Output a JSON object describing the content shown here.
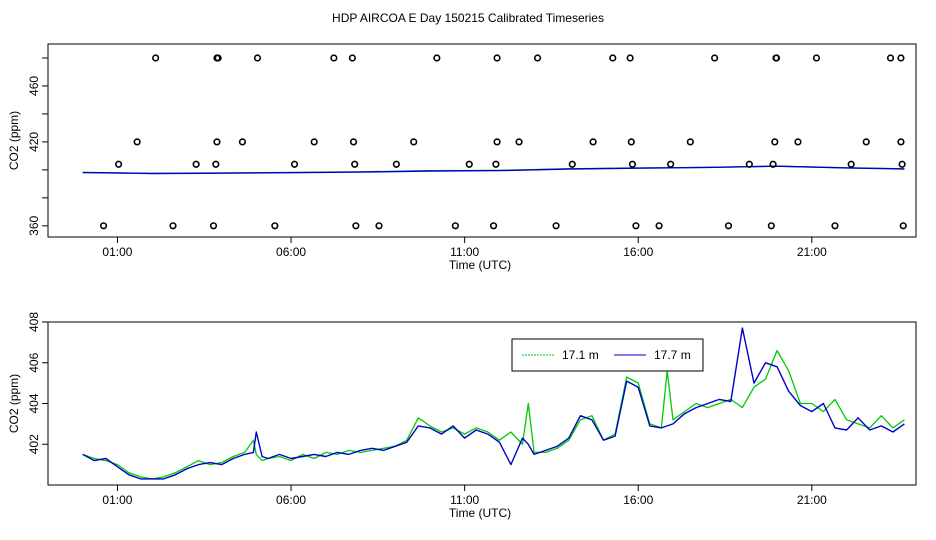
{
  "title": "HDP AIRCOA E  Day 150215  Calibrated Timeseries",
  "colors": {
    "green": "#00cc00",
    "blue": "#0000cc",
    "points": "#000000",
    "axis": "#000000"
  },
  "chart_data": [
    {
      "type": "scatter",
      "xlabel": "Time (UTC)",
      "ylabel": "CO2 (ppm)",
      "xlim": [
        "23:00",
        "24:00"
      ],
      "ylim": [
        352,
        490
      ],
      "x_ticks": [
        "01:00",
        "06:00",
        "11:00",
        "16:00",
        "21:00"
      ],
      "y_ticks": [
        360,
        380,
        400,
        420,
        440,
        460,
        480
      ],
      "y_tick_labels": [
        "360",
        "",
        "",
        "420",
        "",
        "460",
        ""
      ],
      "point_groups": [
        {
          "y": 480,
          "x": [
            "02:06",
            "03:52",
            "03:54",
            "05:02",
            "07:14",
            "07:46",
            "10:12",
            "11:56",
            "13:06",
            "15:16",
            "15:46",
            "18:12",
            "19:58",
            "19:59",
            "21:08",
            "23:16",
            "23:34"
          ]
        },
        {
          "y": 420,
          "x": [
            "01:34",
            "03:52",
            "04:36",
            "06:40",
            "07:48",
            "09:32",
            "11:56",
            "12:34",
            "14:42",
            "15:48",
            "17:30",
            "19:56",
            "20:36",
            "22:34",
            "23:34"
          ]
        },
        {
          "y": 404,
          "x": [
            "01:02",
            "03:16",
            "03:50",
            "06:06",
            "07:50",
            "09:02",
            "11:08",
            "11:54",
            "14:06",
            "15:50",
            "16:56",
            "19:12",
            "19:53",
            "22:08",
            "23:36"
          ]
        },
        {
          "y": 360,
          "x": [
            "00:36",
            "02:36",
            "03:46",
            "05:32",
            "07:52",
            "08:32",
            "10:44",
            "11:50",
            "13:38",
            "15:56",
            "16:36",
            "18:36",
            "19:50",
            "21:40",
            "23:38"
          ]
        }
      ],
      "series": [
        {
          "name": "",
          "color": "#00cc00",
          "x": [
            "00:00",
            "02:00",
            "04:00",
            "06:00",
            "08:00",
            "10:00",
            "12:00",
            "14:00",
            "16:00",
            "18:00",
            "20:00",
            "22:00",
            "23:40"
          ],
          "y": [
            398,
            397.5,
            397.8,
            398.2,
            398.6,
            399.4,
            399.6,
            400.8,
            401.4,
            401.8,
            402.6,
            401.5,
            400.8
          ]
        },
        {
          "name": "",
          "color": "#0000cc",
          "x": [
            "00:00",
            "02:00",
            "04:00",
            "06:00",
            "08:00",
            "10:00",
            "12:00",
            "14:00",
            "16:00",
            "18:00",
            "20:00",
            "22:00",
            "23:40"
          ],
          "y": [
            398.2,
            397.4,
            397.6,
            398.0,
            398.4,
            399.2,
            399.5,
            400.6,
            401.2,
            401.8,
            402.6,
            401.4,
            400.6
          ]
        }
      ]
    },
    {
      "type": "line",
      "xlabel": "Time (UTC)",
      "ylabel": "CO2 (ppm)",
      "xlim": [
        "23:00",
        "24:00"
      ],
      "ylim": [
        400,
        408
      ],
      "x_ticks": [
        "01:00",
        "06:00",
        "11:00",
        "16:00",
        "21:00"
      ],
      "y_ticks": [
        402,
        404,
        406,
        408
      ],
      "legend": "top-right",
      "series": [
        {
          "name": "17.1 m",
          "color": "#00cc00",
          "x": [
            "00:00",
            "00:20",
            "00:40",
            "01:00",
            "01:20",
            "01:40",
            "02:00",
            "02:20",
            "02:40",
            "03:00",
            "03:20",
            "03:40",
            "04:00",
            "04:20",
            "04:40",
            "04:55",
            "05:00",
            "05:10",
            "05:20",
            "05:40",
            "06:00",
            "06:20",
            "06:40",
            "07:00",
            "07:20",
            "07:40",
            "08:00",
            "08:20",
            "08:40",
            "09:00",
            "09:20",
            "09:40",
            "10:00",
            "10:20",
            "10:40",
            "11:00",
            "11:20",
            "11:40",
            "12:00",
            "12:20",
            "12:40",
            "12:50",
            "13:00",
            "13:20",
            "13:40",
            "14:00",
            "14:20",
            "14:40",
            "15:00",
            "15:20",
            "15:40",
            "16:00",
            "16:20",
            "16:40",
            "16:50",
            "17:00",
            "17:20",
            "17:40",
            "18:00",
            "18:20",
            "18:40",
            "19:00",
            "19:20",
            "19:40",
            "20:00",
            "20:20",
            "20:40",
            "21:00",
            "21:20",
            "21:40",
            "22:00",
            "22:20",
            "22:40",
            "23:00",
            "23:20",
            "23:40"
          ],
          "y": [
            401.5,
            401.3,
            401.2,
            401.0,
            400.6,
            400.4,
            400.3,
            400.4,
            400.6,
            400.9,
            401.2,
            401.0,
            401.1,
            401.4,
            401.6,
            402.2,
            401.5,
            401.2,
            401.3,
            401.4,
            401.2,
            401.5,
            401.3,
            401.6,
            401.5,
            401.7,
            401.6,
            401.7,
            401.8,
            401.9,
            402.2,
            403.3,
            402.9,
            402.6,
            402.8,
            402.5,
            402.8,
            402.6,
            402.2,
            402.6,
            402.0,
            404.0,
            401.6,
            401.6,
            401.8,
            402.2,
            403.2,
            403.4,
            402.2,
            402.5,
            405.3,
            405.0,
            403.0,
            402.8,
            405.6,
            403.2,
            403.6,
            404.0,
            403.8,
            404.0,
            404.2,
            403.8,
            404.8,
            405.2,
            406.6,
            405.6,
            404.0,
            404.0,
            403.6,
            404.2,
            403.2,
            403.0,
            402.8,
            403.4,
            402.8,
            403.2
          ]
        },
        {
          "name": "17.7 m",
          "color": "#0000cc",
          "x": [
            "00:00",
            "00:20",
            "00:40",
            "01:00",
            "01:20",
            "01:40",
            "02:00",
            "02:20",
            "02:40",
            "03:00",
            "03:20",
            "03:40",
            "04:00",
            "04:20",
            "04:40",
            "04:55",
            "05:00",
            "05:10",
            "05:20",
            "05:40",
            "06:00",
            "06:20",
            "06:40",
            "07:00",
            "07:20",
            "07:40",
            "08:00",
            "08:20",
            "08:40",
            "09:00",
            "09:20",
            "09:40",
            "10:00",
            "10:20",
            "10:40",
            "11:00",
            "11:20",
            "11:40",
            "12:00",
            "12:20",
            "12:40",
            "12:50",
            "13:00",
            "13:20",
            "13:40",
            "14:00",
            "14:20",
            "14:40",
            "15:00",
            "15:20",
            "15:40",
            "16:00",
            "16:20",
            "16:40",
            "16:50",
            "17:00",
            "17:20",
            "17:40",
            "18:00",
            "18:20",
            "18:40",
            "19:00",
            "19:20",
            "19:40",
            "20:00",
            "20:20",
            "20:40",
            "21:00",
            "21:20",
            "21:40",
            "22:00",
            "22:20",
            "22:40",
            "23:00",
            "23:20",
            "23:40"
          ],
          "y": [
            401.5,
            401.2,
            401.3,
            400.9,
            400.5,
            400.3,
            400.3,
            400.3,
            400.5,
            400.8,
            401.0,
            401.1,
            401.0,
            401.3,
            401.5,
            401.6,
            402.6,
            401.4,
            401.3,
            401.5,
            401.3,
            401.4,
            401.5,
            401.4,
            401.6,
            401.5,
            401.7,
            401.8,
            401.7,
            401.9,
            402.1,
            402.9,
            402.8,
            402.5,
            402.9,
            402.3,
            402.7,
            402.5,
            402.1,
            401.0,
            402.3,
            402.0,
            401.5,
            401.7,
            401.9,
            402.3,
            403.4,
            403.2,
            402.2,
            402.4,
            405.1,
            404.8,
            402.9,
            402.8,
            402.9,
            403.0,
            403.5,
            403.8,
            404.0,
            404.2,
            404.1,
            407.7,
            405.0,
            406.0,
            405.8,
            404.6,
            403.9,
            403.6,
            404.0,
            402.8,
            402.7,
            403.3,
            402.7,
            402.9,
            402.6,
            403.0
          ]
        }
      ]
    }
  ]
}
